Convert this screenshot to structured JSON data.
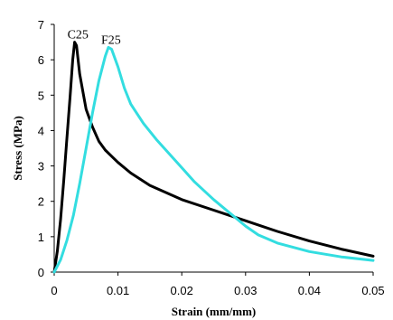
{
  "chart_data": {
    "type": "line",
    "xlabel": "Strain (mm/mm)",
    "ylabel": "Stress (MPa)",
    "xlim": [
      0,
      0.05
    ],
    "ylim": [
      0,
      7
    ],
    "x_ticks": [
      "0",
      "0.01",
      "0.02",
      "0.03",
      "0.04",
      "0.05"
    ],
    "y_ticks": [
      "0",
      "1",
      "2",
      "3",
      "4",
      "5",
      "6",
      "7"
    ],
    "grid": false,
    "legend": "none",
    "series": [
      {
        "name": "C25",
        "color": "#000000",
        "points": [
          [
            0,
            0
          ],
          [
            0.0005,
            0.6
          ],
          [
            0.001,
            1.5
          ],
          [
            0.0015,
            2.6
          ],
          [
            0.002,
            3.8
          ],
          [
            0.0025,
            5.0
          ],
          [
            0.0029,
            6.0
          ],
          [
            0.0032,
            6.5
          ],
          [
            0.0035,
            6.4
          ],
          [
            0.004,
            5.6
          ],
          [
            0.005,
            4.6
          ],
          [
            0.006,
            4.1
          ],
          [
            0.007,
            3.7
          ],
          [
            0.008,
            3.45
          ],
          [
            0.01,
            3.1
          ],
          [
            0.012,
            2.8
          ],
          [
            0.015,
            2.45
          ],
          [
            0.02,
            2.05
          ],
          [
            0.025,
            1.75
          ],
          [
            0.03,
            1.45
          ],
          [
            0.035,
            1.15
          ],
          [
            0.04,
            0.88
          ],
          [
            0.045,
            0.65
          ],
          [
            0.05,
            0.45
          ]
        ]
      },
      {
        "name": "F25",
        "color": "#33dde0",
        "points": [
          [
            0,
            0
          ],
          [
            0.001,
            0.35
          ],
          [
            0.002,
            0.9
          ],
          [
            0.003,
            1.6
          ],
          [
            0.004,
            2.5
          ],
          [
            0.005,
            3.5
          ],
          [
            0.006,
            4.5
          ],
          [
            0.007,
            5.4
          ],
          [
            0.008,
            6.1
          ],
          [
            0.0085,
            6.35
          ],
          [
            0.009,
            6.3
          ],
          [
            0.01,
            5.8
          ],
          [
            0.011,
            5.2
          ],
          [
            0.012,
            4.75
          ],
          [
            0.014,
            4.2
          ],
          [
            0.016,
            3.75
          ],
          [
            0.018,
            3.35
          ],
          [
            0.02,
            2.95
          ],
          [
            0.022,
            2.55
          ],
          [
            0.025,
            2.05
          ],
          [
            0.028,
            1.6
          ],
          [
            0.03,
            1.3
          ],
          [
            0.032,
            1.05
          ],
          [
            0.035,
            0.82
          ],
          [
            0.04,
            0.58
          ],
          [
            0.045,
            0.43
          ],
          [
            0.05,
            0.33
          ]
        ]
      }
    ],
    "annotations": [
      {
        "text": "C25",
        "x": 0.0032,
        "y": 6.5
      },
      {
        "text": "F25",
        "x": 0.0085,
        "y": 6.35
      }
    ]
  }
}
